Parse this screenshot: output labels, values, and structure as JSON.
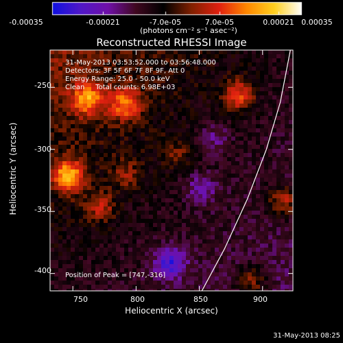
{
  "colorbar": {
    "ticks": [
      "-0.00035",
      "-0.00021",
      "-7.0e-05",
      "7.0e-05",
      "0.00021",
      "0.00035"
    ],
    "units": "(photons cm⁻² s⁻¹ asec⁻²)",
    "range": [
      -0.00035,
      0.00035
    ],
    "colors": [
      "#1010e0",
      "#5018c8",
      "#7010a8",
      "#400820",
      "#000000",
      "#802000",
      "#e02010",
      "#ff8800",
      "#ffd020",
      "#ffffff"
    ]
  },
  "chart_data": {
    "type": "heatmap",
    "title": "Reconstructed RHESSI Image",
    "xlabel": "Heliocentric X (arcsec)",
    "ylabel": "Heliocentric Y (arcsec)",
    "xlim": [
      732,
      924
    ],
    "ylim": [
      -414,
      -220
    ],
    "xticks": [
      750,
      800,
      850,
      900
    ],
    "yticks": [
      -250,
      -300,
      -350,
      -400
    ],
    "annotations": [
      "31-May-2013 03:53:52.000 to 03:56:48.000",
      "Detectors: 3F 5F 6F 7F 8F 9F, Att 0",
      "Energy Range: 25.0 - 50.0 keV",
      "Clean     Total counts: 6.98E+03"
    ],
    "peak_label": "Position of Peak = [747,-316]",
    "limb_curve": [
      [
        852,
        -414
      ],
      [
        870,
        -380
      ],
      [
        888,
        -340
      ],
      [
        903,
        -300
      ],
      [
        914,
        -262
      ],
      [
        922,
        -220
      ]
    ],
    "sources": [
      {
        "x": 760,
        "y": -258,
        "value": 0.00024
      },
      {
        "x": 790,
        "y": -262,
        "value": 0.00022
      },
      {
        "x": 745,
        "y": -320,
        "value": 0.0003
      },
      {
        "x": 770,
        "y": -345,
        "value": 0.00014
      },
      {
        "x": 790,
        "y": -318,
        "value": 0.0001
      },
      {
        "x": 880,
        "y": -255,
        "value": 0.0002
      },
      {
        "x": 915,
        "y": -340,
        "value": 0.00018
      },
      {
        "x": 890,
        "y": -405,
        "value": 0.00015
      },
      {
        "x": 830,
        "y": -300,
        "value": 8e-05
      }
    ],
    "cold_spots": [
      {
        "x": 825,
        "y": -390,
        "value": -0.0002
      },
      {
        "x": 850,
        "y": -330,
        "value": -0.00012
      },
      {
        "x": 860,
        "y": -290,
        "value": -0.0001
      }
    ]
  },
  "footer_timestamp": "31-May-2013 08:25"
}
